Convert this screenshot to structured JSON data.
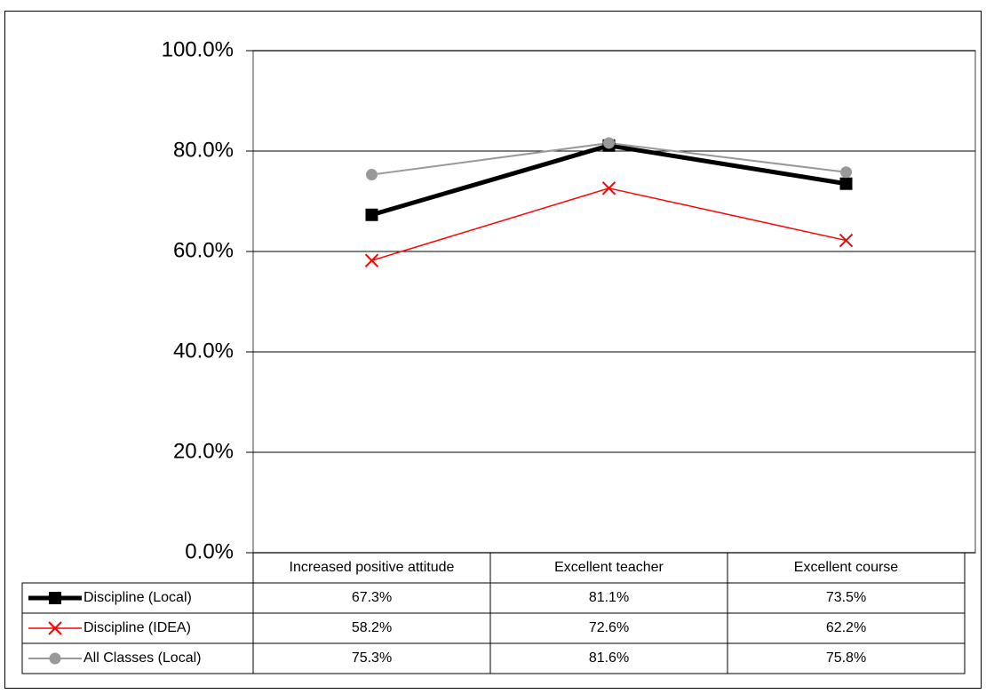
{
  "chart_data": {
    "type": "line",
    "categories": [
      "Increased positive attitude",
      "Excellent teacher",
      "Excellent course"
    ],
    "series": [
      {
        "name": "Discipline (Local)",
        "color": "#000000",
        "marker": "square",
        "values": [
          67.3,
          81.1,
          73.5
        ],
        "value_labels": [
          "67.3%",
          "81.1%",
          "73.5%"
        ]
      },
      {
        "name": "Discipline (IDEA)",
        "color": "#ff0000",
        "marker": "x",
        "values": [
          58.2,
          72.6,
          62.2
        ],
        "value_labels": [
          "58.2%",
          "72.6%",
          "62.2%"
        ]
      },
      {
        "name": "All Classes (Local)",
        "color": "#999999",
        "marker": "circle",
        "values": [
          75.3,
          81.6,
          75.8
        ],
        "value_labels": [
          "75.3%",
          "81.6%",
          "75.8%"
        ]
      }
    ],
    "ylim": [
      0,
      100
    ],
    "yticks": [
      {
        "value": 0,
        "label": "0.0%"
      },
      {
        "value": 20,
        "label": "20.0%"
      },
      {
        "value": 40,
        "label": "40.0%"
      },
      {
        "value": 60,
        "label": "60.0%"
      },
      {
        "value": 80,
        "label": "80.0%"
      },
      {
        "value": 100,
        "label": "100.0%"
      }
    ],
    "grid": true,
    "data_table": true
  }
}
